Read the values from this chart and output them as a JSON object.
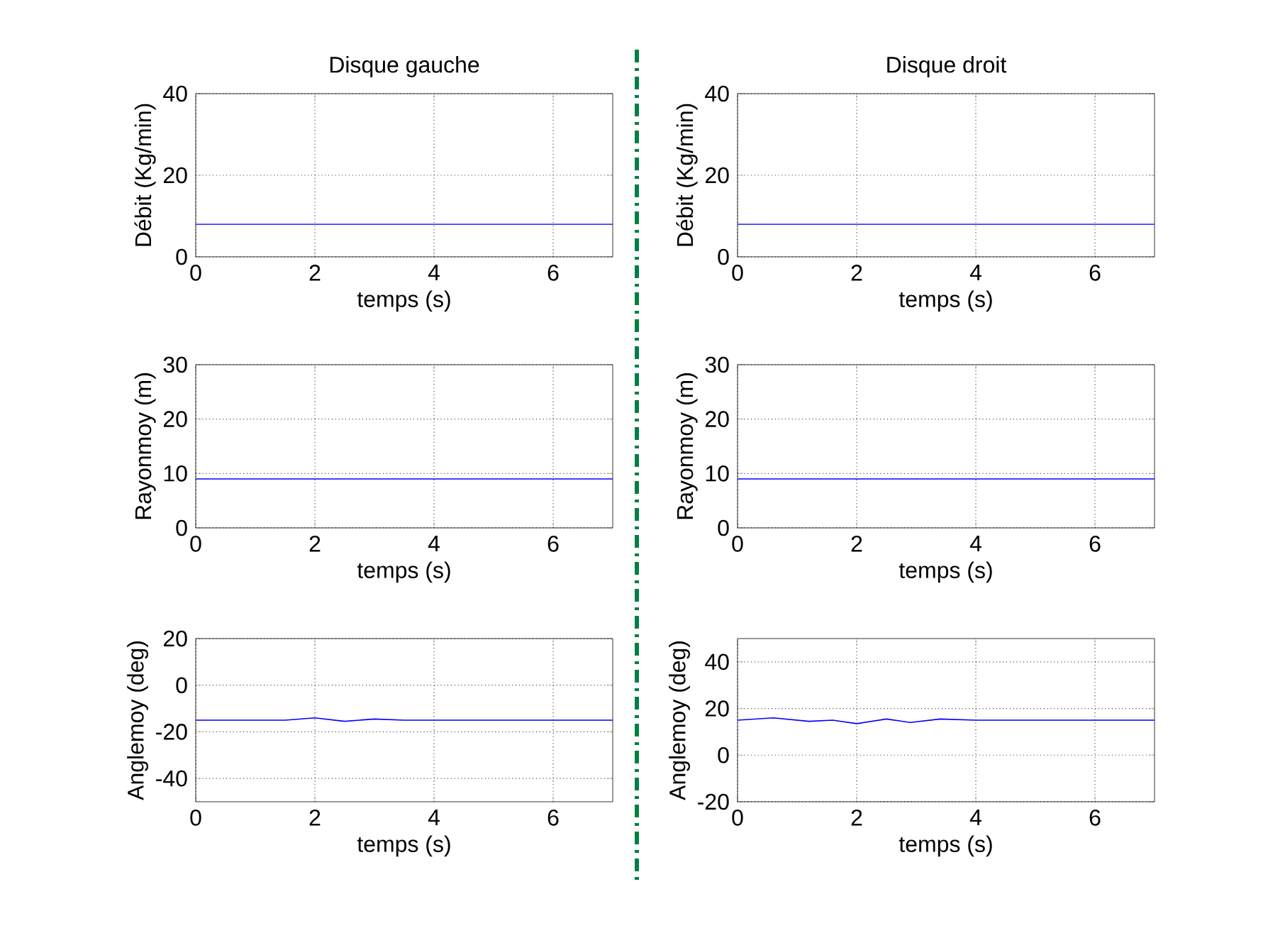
{
  "chart_data": [
    {
      "type": "line",
      "title": "Disque gauche",
      "xlabel": "temps (s)",
      "ylabel": "Débit (Kg/min)",
      "x": [
        0,
        1,
        2,
        3,
        4,
        5,
        6,
        7
      ],
      "values": [
        8,
        8,
        8,
        8,
        8,
        8,
        8,
        8
      ],
      "color": "#0000ff",
      "xlim": [
        0,
        7
      ],
      "ylim": [
        0,
        40
      ],
      "xticks": [
        0,
        2,
        4,
        6
      ],
      "yticks": [
        0,
        20,
        40
      ],
      "grid": true
    },
    {
      "type": "line",
      "title": "Disque droit",
      "xlabel": "temps (s)",
      "ylabel": "Débit (Kg/min)",
      "x": [
        0,
        1,
        2,
        3,
        4,
        5,
        6,
        7
      ],
      "values": [
        8,
        8,
        8,
        8,
        8,
        8,
        8,
        8
      ],
      "color": "#0000ff",
      "xlim": [
        0,
        7
      ],
      "ylim": [
        0,
        40
      ],
      "xticks": [
        0,
        2,
        4,
        6
      ],
      "yticks": [
        0,
        20,
        40
      ],
      "grid": true
    },
    {
      "type": "line",
      "xlabel": "temps (s)",
      "ylabel": "Rayonmoy (m)",
      "x": [
        0,
        1,
        2,
        3,
        4,
        5,
        6,
        7
      ],
      "values": [
        9,
        9,
        9,
        9,
        9,
        9,
        9,
        9
      ],
      "color": "#0000ff",
      "xlim": [
        0,
        7
      ],
      "ylim": [
        0,
        30
      ],
      "xticks": [
        0,
        2,
        4,
        6
      ],
      "yticks": [
        0,
        10,
        20,
        30
      ],
      "grid": true
    },
    {
      "type": "line",
      "xlabel": "temps (s)",
      "ylabel": "Rayonmoy (m)",
      "x": [
        0,
        1,
        2,
        3,
        4,
        5,
        6,
        7
      ],
      "values": [
        9,
        9,
        9,
        9,
        9,
        9,
        9,
        9
      ],
      "color": "#0000ff",
      "xlim": [
        0,
        7
      ],
      "ylim": [
        0,
        30
      ],
      "xticks": [
        0,
        2,
        4,
        6
      ],
      "yticks": [
        0,
        10,
        20,
        30
      ],
      "grid": true
    },
    {
      "type": "line",
      "xlabel": "temps (s)",
      "ylabel": "Anglemoy (deg)",
      "x": [
        0,
        1,
        1.5,
        2,
        2.5,
        3,
        3.5,
        4,
        5,
        6,
        7
      ],
      "values": [
        -15,
        -15,
        -15,
        -14,
        -15.5,
        -14.5,
        -15,
        -15,
        -15,
        -15,
        -15
      ],
      "color": "#0000ff",
      "xlim": [
        0,
        7
      ],
      "ylim": [
        -50,
        20
      ],
      "xticks": [
        0,
        2,
        4,
        6
      ],
      "yticks": [
        -40,
        -20,
        0,
        20
      ],
      "grid": true
    },
    {
      "type": "line",
      "xlabel": "temps (s)",
      "ylabel": "Anglemoy (deg)",
      "x": [
        0,
        0.6,
        1.2,
        1.6,
        2,
        2.5,
        2.9,
        3.4,
        4,
        5,
        6,
        7
      ],
      "values": [
        15,
        16,
        14.5,
        15,
        13.5,
        15.5,
        14,
        15.5,
        15,
        15,
        15,
        15
      ],
      "color": "#0000ff",
      "xlim": [
        0,
        7
      ],
      "ylim": [
        -20,
        50
      ],
      "xticks": [
        0,
        2,
        4,
        6
      ],
      "yticks": [
        -20,
        0,
        20,
        40
      ],
      "grid": true
    }
  ]
}
